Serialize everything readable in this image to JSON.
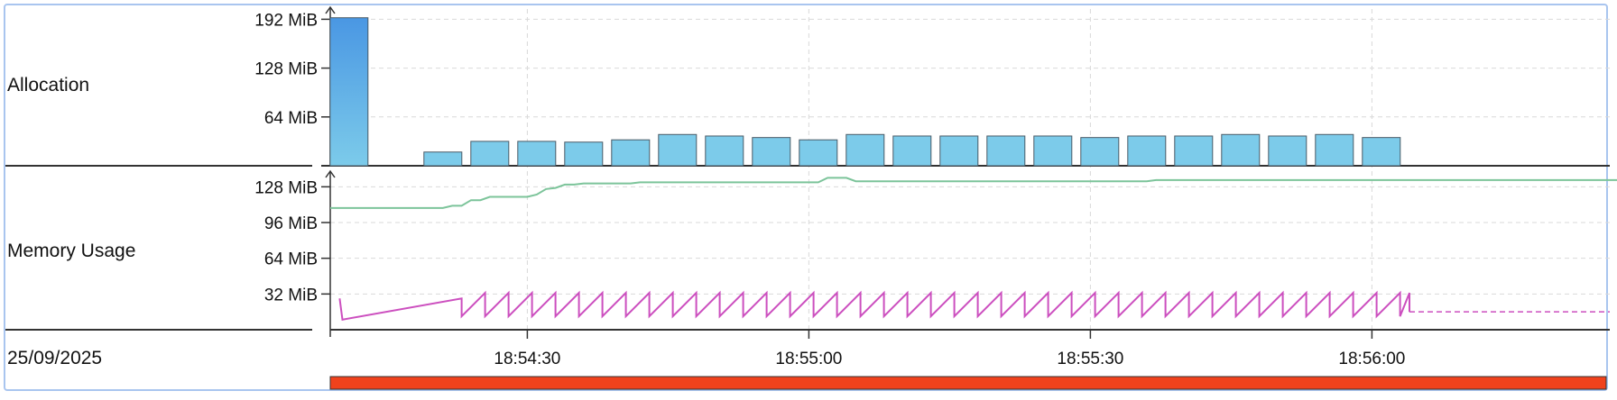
{
  "date_label": "25/09/2025",
  "chart_data": [
    {
      "type": "bar",
      "panel": "Allocation",
      "yticks": [
        {
          "label": "192 MiB",
          "value": 192
        },
        {
          "label": "128 MiB",
          "value": 128
        },
        {
          "label": "64 MiB",
          "value": 64
        }
      ],
      "ylim": [
        0,
        196
      ],
      "x_labels": [
        "18:54:30",
        "18:55:00",
        "18:55:30",
        "18:56:00"
      ],
      "bars": [
        {
          "t": "18:54:11",
          "value": 194
        },
        {
          "t": "18:54:21",
          "value": 18
        },
        {
          "t": "18:54:26",
          "value": 32
        },
        {
          "t": "18:54:31",
          "value": 32
        },
        {
          "t": "18:54:36",
          "value": 31
        },
        {
          "t": "18:54:41",
          "value": 34
        },
        {
          "t": "18:54:46",
          "value": 41
        },
        {
          "t": "18:54:51",
          "value": 39
        },
        {
          "t": "18:54:56",
          "value": 37
        },
        {
          "t": "18:55:01",
          "value": 34
        },
        {
          "t": "18:55:06",
          "value": 41
        },
        {
          "t": "18:55:11",
          "value": 39
        },
        {
          "t": "18:55:16",
          "value": 39
        },
        {
          "t": "18:55:21",
          "value": 39
        },
        {
          "t": "18:55:26",
          "value": 39
        },
        {
          "t": "18:55:31",
          "value": 37
        },
        {
          "t": "18:55:36",
          "value": 39
        },
        {
          "t": "18:55:41",
          "value": 39
        },
        {
          "t": "18:55:46",
          "value": 41
        },
        {
          "t": "18:55:51",
          "value": 39
        },
        {
          "t": "18:55:56",
          "value": 41
        },
        {
          "t": "18:56:01",
          "value": 37
        }
      ]
    },
    {
      "type": "line",
      "panel": "Memory Usage",
      "yticks": [
        {
          "label": "128 MiB",
          "value": 128
        },
        {
          "label": "96 MiB",
          "value": 96
        },
        {
          "label": "64 MiB",
          "value": 64
        },
        {
          "label": "32 MiB",
          "value": 32
        }
      ],
      "ylim": [
        0,
        142
      ],
      "x_labels": [
        "18:54:30",
        "18:55:00",
        "18:55:30",
        "18:56:00"
      ],
      "series": [
        {
          "color": "#7cc49a",
          "style": "step",
          "points": [
            [
              "18:54:09",
              109
            ],
            [
              "18:54:21",
              109
            ],
            [
              "18:54:22",
              111
            ],
            [
              "18:54:23",
              111
            ],
            [
              "18:54:24",
              116
            ],
            [
              "18:54:25",
              116
            ],
            [
              "18:54:26",
              119
            ],
            [
              "18:54:30",
              119
            ],
            [
              "18:54:31",
              121
            ],
            [
              "18:54:32",
              126
            ],
            [
              "18:54:33",
              127
            ],
            [
              "18:54:34",
              130
            ],
            [
              "18:54:35",
              130
            ],
            [
              "18:54:36",
              131
            ],
            [
              "18:54:41",
              131
            ],
            [
              "18:54:42",
              132
            ],
            [
              "18:55:01",
              132
            ],
            [
              "18:55:02",
              136
            ],
            [
              "18:55:04",
              136
            ],
            [
              "18:55:05",
              133
            ],
            [
              "18:55:36",
              133
            ],
            [
              "18:55:37",
              134
            ],
            [
              "18:56:28",
              134
            ]
          ]
        },
        {
          "color": "#cc4fbf",
          "style": "sawtooth",
          "start": {
            "t": "18:54:10",
            "value": 28
          },
          "initial_drop": 9,
          "first_ramp_end": {
            "t": "18:54:23",
            "value": 28
          },
          "sawtooth_low": 12,
          "sawtooth_high": 33,
          "sawtooth_period_s": 2.5,
          "sawtooth_end": "18:56:04",
          "dashed_tail": {
            "from": "18:56:04",
            "to": "18:56:28",
            "value": 16
          }
        }
      ]
    }
  ],
  "timeline": {
    "start": "18:54:09",
    "end": "18:56:28",
    "color": "#f0421c"
  }
}
